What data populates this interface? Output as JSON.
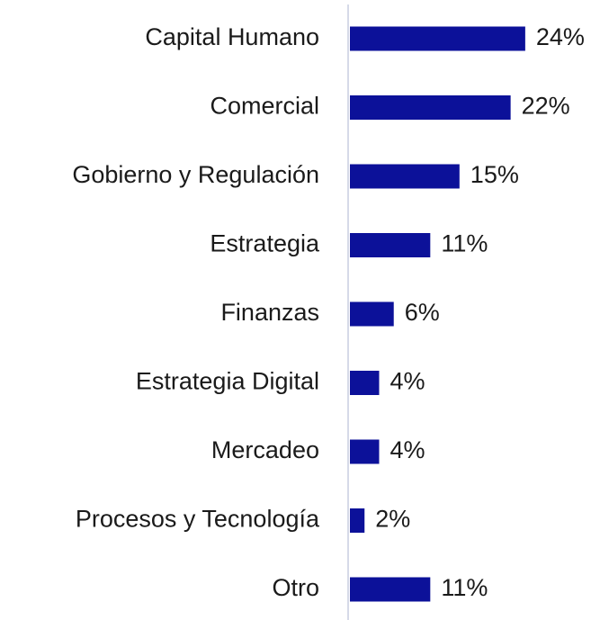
{
  "chart_data": {
    "type": "bar",
    "orientation": "horizontal",
    "categories": [
      "Capital Humano",
      "Comercial",
      "Gobierno y Regulación",
      "Estrategia",
      "Finanzas",
      "Estrategia Digital",
      "Mercadeo",
      "Procesos y Tecnología",
      "Otro"
    ],
    "values": [
      24,
      22,
      15,
      11,
      6,
      4,
      4,
      2,
      11
    ],
    "value_labels": [
      "24%",
      "22%",
      "15%",
      "11%",
      "6%",
      "4%",
      "4%",
      "2%",
      "11%"
    ],
    "color": "#0c1199"
  }
}
